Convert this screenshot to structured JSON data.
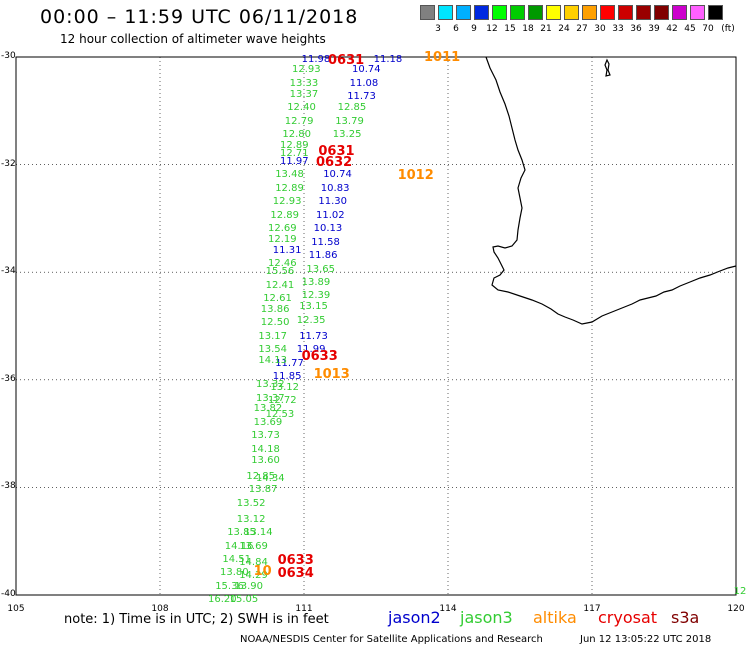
{
  "header": {
    "title": "00:00 – 11:59 UTC 06/11/2018",
    "subtitle": "12 hour collection of altimeter wave heights"
  },
  "legend": {
    "unit": "(ft)",
    "levels": [
      {
        "label": "",
        "color": "#808080"
      },
      {
        "label": "3",
        "color": "#00e5ff"
      },
      {
        "label": "6",
        "color": "#00b0ff"
      },
      {
        "label": "9",
        "color": "#0028e0"
      },
      {
        "label": "12",
        "color": "#00ff00"
      },
      {
        "label": "15",
        "color": "#00cc00"
      },
      {
        "label": "18",
        "color": "#009900"
      },
      {
        "label": "21",
        "color": "#ffff00"
      },
      {
        "label": "24",
        "color": "#ffd000"
      },
      {
        "label": "27",
        "color": "#ffa000"
      },
      {
        "label": "30",
        "color": "#ff0000"
      },
      {
        "label": "33",
        "color": "#cc0000"
      },
      {
        "label": "36",
        "color": "#990000"
      },
      {
        "label": "39",
        "color": "#800000"
      },
      {
        "label": "42",
        "color": "#cc00cc"
      },
      {
        "label": "45",
        "color": "#ff60ff"
      },
      {
        "label": "70",
        "color": "#000000"
      }
    ]
  },
  "axes": {
    "lat_labels": [
      "-30",
      "-32",
      "-34",
      "-36",
      "-38",
      "-40"
    ],
    "lon_labels": [
      "105",
      "108",
      "111",
      "114",
      "117",
      "120"
    ]
  },
  "colors": {
    "jason2": "#0000cc",
    "jason3": "#33cc33",
    "altika": "#ff8c00",
    "cryosat": "#e60000",
    "s3a": "#800000"
  },
  "tracks": {
    "jason2": [
      {
        "v": "11.98",
        "lon": 110.95,
        "lat": -30.05
      },
      {
        "v": "11.18",
        "lon": 112.45,
        "lat": -30.05
      },
      {
        "v": "10.74",
        "lon": 112.0,
        "lat": -30.25
      },
      {
        "v": "11.08",
        "lon": 111.95,
        "lat": -30.5
      },
      {
        "v": "11.73",
        "lon": 111.9,
        "lat": -30.75
      },
      {
        "v": "11.97",
        "lon": 110.5,
        "lat": -31.95
      },
      {
        "v": "10.74",
        "lon": 111.4,
        "lat": -32.2
      },
      {
        "v": "10.83",
        "lon": 111.35,
        "lat": -32.45
      },
      {
        "v": "11.30",
        "lon": 111.3,
        "lat": -32.7
      },
      {
        "v": "11.02",
        "lon": 111.25,
        "lat": -32.95
      },
      {
        "v": "10.13",
        "lon": 111.2,
        "lat": -33.2
      },
      {
        "v": "11.58",
        "lon": 111.15,
        "lat": -33.45
      },
      {
        "v": "11.31",
        "lon": 110.35,
        "lat": -33.6
      },
      {
        "v": "11.86",
        "lon": 111.1,
        "lat": -33.7
      },
      {
        "v": "11.73",
        "lon": 110.9,
        "lat": -35.2
      },
      {
        "v": "11.99",
        "lon": 110.85,
        "lat": -35.45
      },
      {
        "v": "11.77",
        "lon": 110.4,
        "lat": -35.7
      },
      {
        "v": "11.85",
        "lon": 110.35,
        "lat": -35.95
      }
    ],
    "jason3": [
      {
        "v": "12.93",
        "lon": 110.75,
        "lat": -30.25
      },
      {
        "v": "13.33",
        "lon": 110.7,
        "lat": -30.5
      },
      {
        "v": "13.37",
        "lon": 110.7,
        "lat": -30.7
      },
      {
        "v": "12.40",
        "lon": 110.65,
        "lat": -30.95
      },
      {
        "v": "12.85",
        "lon": 111.7,
        "lat": -30.95
      },
      {
        "v": "12.79",
        "lon": 110.6,
        "lat": -31.2
      },
      {
        "v": "13.79",
        "lon": 111.65,
        "lat": -31.2
      },
      {
        "v": "12.80",
        "lon": 110.55,
        "lat": -31.45
      },
      {
        "v": "13.25",
        "lon": 111.6,
        "lat": -31.45
      },
      {
        "v": "12.89",
        "lon": 110.5,
        "lat": -31.65
      },
      {
        "v": "12.71",
        "lon": 110.5,
        "lat": -31.8
      },
      {
        "v": "13.48",
        "lon": 110.4,
        "lat": -32.2
      },
      {
        "v": "12.89",
        "lon": 110.4,
        "lat": -32.45
      },
      {
        "v": "12.93",
        "lon": 110.35,
        "lat": -32.7
      },
      {
        "v": "12.89",
        "lon": 110.3,
        "lat": -32.95
      },
      {
        "v": "12.69",
        "lon": 110.25,
        "lat": -33.2
      },
      {
        "v": "12.19",
        "lon": 110.25,
        "lat": -33.4
      },
      {
        "v": "12.46",
        "lon": 110.25,
        "lat": -33.85
      },
      {
        "v": "15.56",
        "lon": 110.2,
        "lat": -34.0
      },
      {
        "v": "13.65",
        "lon": 111.05,
        "lat": -33.95
      },
      {
        "v": "12.41",
        "lon": 110.2,
        "lat": -34.25
      },
      {
        "v": "13.89",
        "lon": 110.95,
        "lat": -34.2
      },
      {
        "v": "12.61",
        "lon": 110.15,
        "lat": -34.5
      },
      {
        "v": "12.39",
        "lon": 110.95,
        "lat": -34.45
      },
      {
        "v": "13.86",
        "lon": 110.1,
        "lat": -34.7
      },
      {
        "v": "13.15",
        "lon": 110.9,
        "lat": -34.65
      },
      {
        "v": "12.50",
        "lon": 110.1,
        "lat": -34.95
      },
      {
        "v": "12.35",
        "lon": 110.85,
        "lat": -34.9
      },
      {
        "v": "13.17",
        "lon": 110.05,
        "lat": -35.2
      },
      {
        "v": "13.54",
        "lon": 110.05,
        "lat": -35.45
      },
      {
        "v": "14.13",
        "lon": 110.05,
        "lat": -35.65
      },
      {
        "v": "13.32",
        "lon": 110.0,
        "lat": -36.1
      },
      {
        "v": "13.12",
        "lon": 110.3,
        "lat": -36.15
      },
      {
        "v": "13.37",
        "lon": 110.0,
        "lat": -36.35
      },
      {
        "v": "12.72",
        "lon": 110.25,
        "lat": -36.4
      },
      {
        "v": "13.82",
        "lon": 109.95,
        "lat": -36.55
      },
      {
        "v": "12.53",
        "lon": 110.2,
        "lat": -36.65
      },
      {
        "v": "13.69",
        "lon": 109.95,
        "lat": -36.8
      },
      {
        "v": "13.73",
        "lon": 109.9,
        "lat": -37.05
      },
      {
        "v": "14.18",
        "lon": 109.9,
        "lat": -37.3
      },
      {
        "v": "13.60",
        "lon": 109.9,
        "lat": -37.5
      },
      {
        "v": "12.85",
        "lon": 109.8,
        "lat": -37.8
      },
      {
        "v": "14.34",
        "lon": 110.0,
        "lat": -37.85
      },
      {
        "v": "13.87",
        "lon": 109.85,
        "lat": -38.05
      },
      {
        "v": "13.52",
        "lon": 109.6,
        "lat": -38.3
      },
      {
        "v": "13.12",
        "lon": 109.6,
        "lat": -38.6
      },
      {
        "v": "13.85",
        "lon": 109.4,
        "lat": -38.85
      },
      {
        "v": "13.14",
        "lon": 109.75,
        "lat": -38.85
      },
      {
        "v": "14.16",
        "lon": 109.35,
        "lat": -39.1
      },
      {
        "v": "13.69",
        "lon": 109.65,
        "lat": -39.1
      },
      {
        "v": "14.51",
        "lon": 109.3,
        "lat": -39.35
      },
      {
        "v": "14.84",
        "lon": 109.65,
        "lat": -39.4
      },
      {
        "v": "13.80",
        "lon": 109.25,
        "lat": -39.6
      },
      {
        "v": "14.29",
        "lon": 109.65,
        "lat": -39.65
      },
      {
        "v": "15.36",
        "lon": 109.15,
        "lat": -39.85
      },
      {
        "v": "13.90",
        "lon": 109.55,
        "lat": -39.85
      },
      {
        "v": "16.20",
        "lon": 109.0,
        "lat": -40.1
      },
      {
        "v": "15.05",
        "lon": 109.45,
        "lat": -40.1
      }
    ],
    "altika": [
      {
        "v": "1011",
        "lon": 113.5,
        "lat": -30.0
      },
      {
        "v": "1012",
        "lon": 112.95,
        "lat": -32.2
      },
      {
        "v": "1013",
        "lon": 111.2,
        "lat": -35.9
      },
      {
        "v": "10",
        "lon": 109.95,
        "lat": -39.55
      }
    ],
    "cryosat": [
      {
        "v": "0631",
        "lon": 111.5,
        "lat": -30.05
      },
      {
        "v": "0631",
        "lon": 111.3,
        "lat": -31.75
      },
      {
        "v": "0632",
        "lon": 111.25,
        "lat": -31.95
      },
      {
        "v": "0633",
        "lon": 110.95,
        "lat": -35.55
      },
      {
        "v": "0633",
        "lon": 110.45,
        "lat": -39.35
      },
      {
        "v": "0634",
        "lon": 110.45,
        "lat": -39.6
      }
    ],
    "s3a": [],
    "edge": [
      {
        "v": "12",
        "lon": 119.95,
        "lat": -39.95
      }
    ]
  },
  "footer": {
    "note": "note: 1) Time is in UTC; 2) SWH is in feet",
    "sat_jason2": "jason2",
    "sat_jason3": "jason3",
    "sat_altika": "altika",
    "sat_cryosat": "cryosat",
    "sat_s3a": "s3a",
    "credit": "NOAA/NESDIS Center for Satellite Applications and Research",
    "date": "Jun 12 13:05:22 UTC 2018"
  }
}
